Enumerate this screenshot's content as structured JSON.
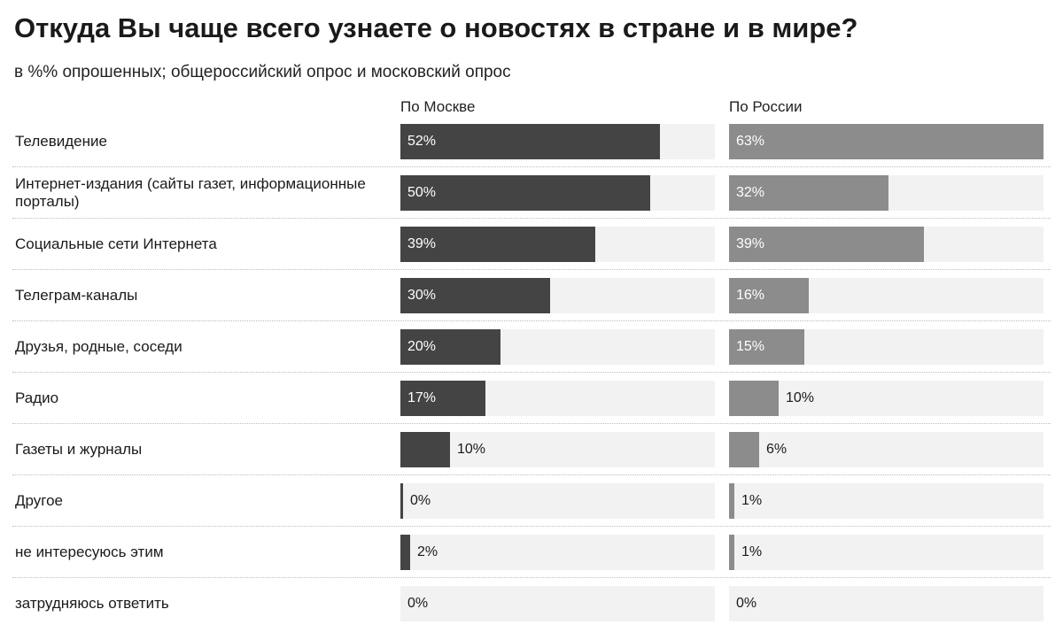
{
  "chart_data": {
    "type": "bar",
    "title": "Откуда Вы чаще всего узнаете о новостях в стране и в мире?",
    "subtitle": "в %% опрошенных; общероссийский опрос и московский опрос",
    "categories": [
      "Телевидение",
      "Интернет-издания (сайты газет, информационные порталы)",
      "Социальные сети Интернета",
      "Телеграм-каналы",
      "Друзья, родные, соседи",
      "Радио",
      "Газеты и журналы",
      "Другое",
      "не интересуюсь этим",
      "затрудняюсь ответить"
    ],
    "series": [
      {
        "name": "По Москве",
        "color": "#444444",
        "values": [
          52,
          50,
          39,
          30,
          20,
          17,
          10,
          0,
          2,
          0
        ],
        "labels": [
          "52%",
          "50%",
          "39%",
          "30%",
          "20%",
          "17%",
          "10%",
          "0%",
          "2%",
          "0%"
        ]
      },
      {
        "name": "По России",
        "color": "#8c8c8c",
        "values": [
          63,
          32,
          39,
          16,
          15,
          10,
          6,
          1,
          1,
          0
        ],
        "labels": [
          "63%",
          "32%",
          "39%",
          "16%",
          "15%",
          "10%",
          "6%",
          "1%",
          "1%",
          "0%"
        ]
      }
    ],
    "xlim": [
      0,
      63
    ],
    "track_color": "#f2f2f2",
    "grid": false,
    "legend": "column headers above each panel"
  }
}
